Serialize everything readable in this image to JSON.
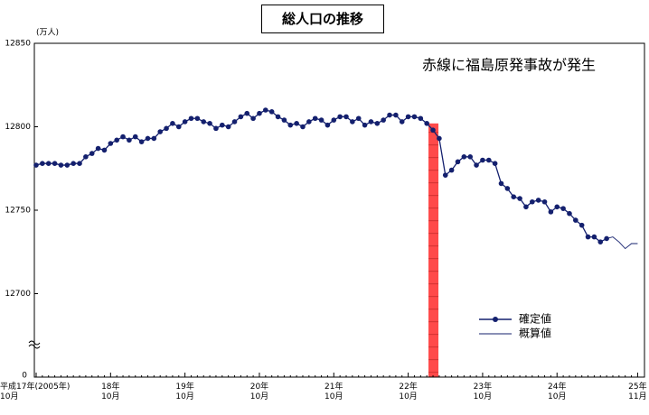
{
  "chart_data": {
    "type": "line",
    "title": "総人口の推移",
    "y_unit": "(万人)",
    "annotation": "赤線に福島原発事故が発生",
    "y_break_label": "0",
    "categories": [
      "平成17年(2005年)\n10月",
      null,
      null,
      null,
      null,
      null,
      null,
      null,
      null,
      null,
      null,
      null,
      "18年\n10月",
      null,
      null,
      null,
      null,
      null,
      null,
      null,
      null,
      null,
      null,
      null,
      "19年\n10月",
      null,
      null,
      null,
      null,
      null,
      null,
      null,
      null,
      null,
      null,
      null,
      "20年\n10月",
      null,
      null,
      null,
      null,
      null,
      null,
      null,
      null,
      null,
      null,
      null,
      "21年\n10月",
      null,
      null,
      null,
      null,
      null,
      null,
      null,
      null,
      null,
      null,
      null,
      "22年\n10月",
      null,
      null,
      null,
      null,
      null,
      null,
      null,
      null,
      null,
      null,
      null,
      "23年\n10月",
      null,
      null,
      null,
      null,
      null,
      null,
      null,
      null,
      null,
      null,
      null,
      "24年\n10月",
      null,
      null,
      null,
      null,
      null,
      null,
      null,
      null,
      null,
      null,
      null,
      null,
      "25年\n11月"
    ],
    "series": [
      {
        "name": "確定値",
        "color": "#14206e",
        "marker": true,
        "values": [
          12777,
          12778,
          12778,
          12778,
          12777,
          12777,
          12778,
          12778,
          12782,
          12784,
          12787,
          12786,
          12790,
          12792,
          12794,
          12792,
          12794,
          12791,
          12793,
          12793,
          12797,
          12799,
          12802,
          12800,
          12803,
          12805,
          12805,
          12803,
          12802,
          12799,
          12801,
          12800,
          12803,
          12806,
          12808,
          12805,
          12808,
          12810,
          12809,
          12806,
          12804,
          12801,
          12802,
          12800,
          12803,
          12805,
          12804,
          12801,
          12804,
          12806,
          12806,
          12803,
          12805,
          12801,
          12803,
          12802,
          12804,
          12807,
          12807,
          12803,
          12806,
          12806,
          12805,
          12802,
          12798,
          12793,
          12771,
          12774,
          12779,
          12782,
          12782,
          12777,
          12780,
          12780,
          12778,
          12766,
          12763,
          12758,
          12757,
          12752,
          12755,
          12756,
          12755,
          12749,
          12752,
          12751,
          12748,
          12744,
          12741,
          12734,
          12734,
          12731,
          12733,
          null,
          null,
          null,
          null,
          null
        ]
      },
      {
        "name": "概算値",
        "color": "#14206e",
        "marker": false,
        "values": [
          null,
          null,
          null,
          null,
          null,
          null,
          null,
          null,
          null,
          null,
          null,
          null,
          null,
          null,
          null,
          null,
          null,
          null,
          null,
          null,
          null,
          null,
          null,
          null,
          null,
          null,
          null,
          null,
          null,
          null,
          null,
          null,
          null,
          null,
          null,
          null,
          null,
          null,
          null,
          null,
          null,
          null,
          null,
          null,
          null,
          null,
          null,
          null,
          null,
          null,
          null,
          null,
          null,
          null,
          null,
          null,
          null,
          null,
          null,
          null,
          null,
          null,
          null,
          null,
          null,
          null,
          null,
          null,
          null,
          null,
          null,
          null,
          null,
          null,
          null,
          null,
          null,
          null,
          null,
          null,
          null,
          null,
          null,
          null,
          null,
          null,
          null,
          null,
          null,
          null,
          null,
          null,
          12733,
          12734,
          12731,
          12727,
          12730,
          12730
        ]
      }
    ],
    "ylim": [
      12650,
      12850
    ],
    "yticks": [
      12700,
      12750,
      12800,
      12850
    ],
    "highlight_index": 64,
    "highlight_color": "#ff4a4a"
  }
}
